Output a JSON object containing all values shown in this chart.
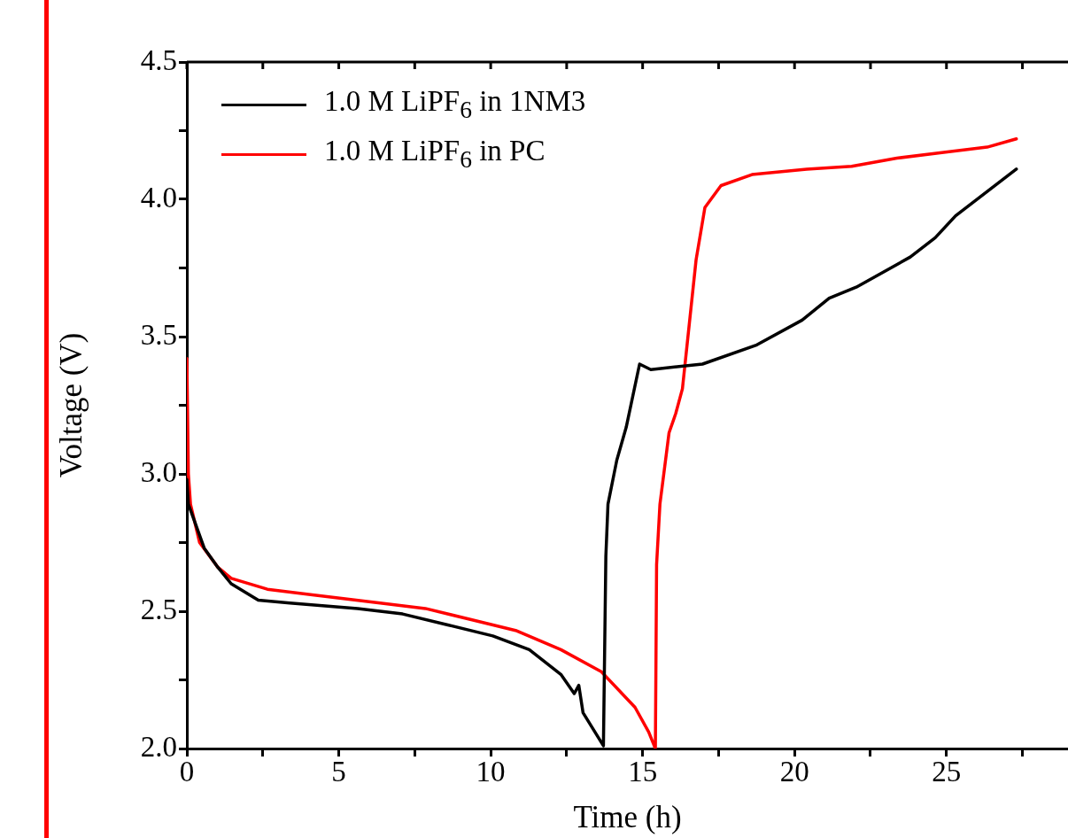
{
  "chart_data": {
    "type": "line",
    "xlabel": "Time (h)",
    "ylabel": "Voltage (V)",
    "xlim": [
      0,
      29
    ],
    "ylim": [
      2,
      4.5
    ],
    "xticks": [
      0,
      {
        "value": 2.5,
        "label": null
      },
      5,
      {
        "value": 7.5,
        "label": null
      },
      10,
      {
        "value": 12.5,
        "label": null
      },
      15,
      {
        "value": 17.5,
        "label": null
      },
      20,
      {
        "value": 22.5,
        "label": null
      },
      25,
      {
        "value": 27.5,
        "label": null
      }
    ],
    "yticks": [
      {
        "value": 2,
        "label": "2.0"
      },
      {
        "value": 2.25,
        "label": null
      },
      {
        "value": 2.5,
        "label": "2.5"
      },
      {
        "value": 2.75,
        "label": null
      },
      {
        "value": 3,
        "label": "3.0"
      },
      {
        "value": 3.25,
        "label": null
      },
      {
        "value": 3.5,
        "label": "3.5"
      },
      {
        "value": 3.75,
        "label": null
      },
      {
        "value": 4,
        "label": "4.0"
      },
      {
        "value": 4.25,
        "label": null
      },
      {
        "value": 4.5,
        "label": "4.5"
      }
    ],
    "grid": false,
    "legend": "top left",
    "marker": "none",
    "line_style": "solid",
    "series": [
      {
        "name": "1.0 M LiPF$_{6}$ in 1NM3",
        "color": "#000000",
        "x": [
          0,
          0.05,
          0.57,
          1.02,
          1.46,
          2.35,
          3.39,
          5.62,
          7.1,
          8.59,
          10.07,
          11.27,
          12.31,
          12.75,
          12.9,
          13.04,
          13.71,
          13.79,
          13.86,
          14.15,
          14.46,
          14.9,
          15.27,
          16.97,
          18.76,
          20.25,
          21.14,
          22.03,
          23.81,
          24.63,
          25.3,
          27.3
        ],
        "values": [
          2.98,
          2.89,
          2.73,
          2.66,
          2.6,
          2.54,
          2.53,
          2.51,
          2.49,
          2.45,
          2.41,
          2.36,
          2.27,
          2.2,
          2.23,
          2.13,
          2.01,
          2.7,
          2.89,
          3.05,
          3.17,
          3.4,
          3.38,
          3.4,
          3.47,
          3.56,
          3.64,
          3.68,
          3.79,
          3.86,
          3.94,
          4.11
        ]
      },
      {
        "name": "1.0 M LiPF$_{6}$ in PC",
        "color": "#ff0000",
        "x": [
          0,
          0.05,
          0.12,
          0.42,
          1.02,
          1.46,
          2.65,
          4.13,
          6.36,
          7.85,
          9.33,
          10.82,
          12.31,
          13.64,
          14.75,
          15.2,
          15.42,
          15.46,
          15.57,
          15.87,
          16.09,
          16.31,
          16.54,
          16.76,
          17.05,
          17.58,
          18.6,
          20.4,
          21.88,
          23.37,
          24.85,
          26.34,
          27.3
        ],
        "values": [
          3.42,
          3.0,
          2.89,
          2.75,
          2.66,
          2.62,
          2.58,
          2.56,
          2.53,
          2.51,
          2.47,
          2.43,
          2.36,
          2.28,
          2.15,
          2.06,
          2.0,
          2.67,
          2.89,
          3.15,
          3.22,
          3.31,
          3.55,
          3.78,
          3.97,
          4.05,
          4.09,
          4.11,
          4.12,
          4.15,
          4.17,
          4.19,
          4.22
        ]
      }
    ]
  }
}
